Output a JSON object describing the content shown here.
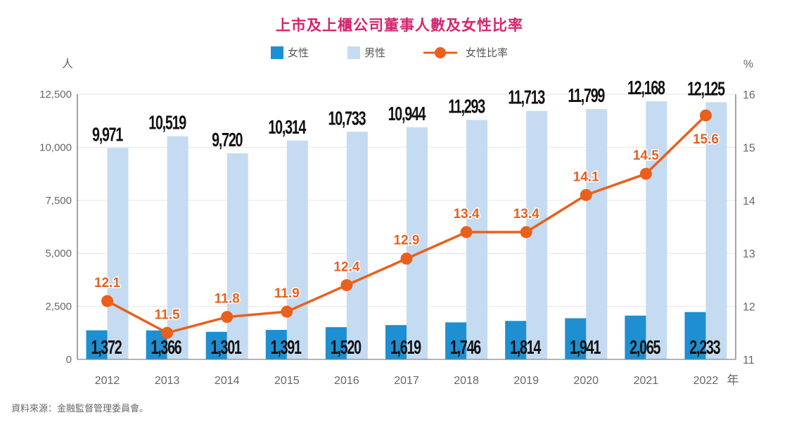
{
  "chart_data": {
    "type": "bar",
    "title": "上市及上櫃公司董事人數及女性比率",
    "categories": [
      "2012",
      "2013",
      "2014",
      "2015",
      "2016",
      "2017",
      "2018",
      "2019",
      "2020",
      "2021",
      "2022"
    ],
    "xlabel_suffix": "年",
    "ylabel_left": "人",
    "ylabel_right": "%",
    "ylim_left": [
      0,
      12500
    ],
    "ylim_right": [
      11,
      16
    ],
    "yticks_left": [
      "0",
      "2,500",
      "5,000",
      "7,500",
      "10,000",
      "12,500"
    ],
    "yticks_right": [
      "11",
      "12",
      "13",
      "14",
      "15",
      "16"
    ],
    "grid": true,
    "legend_position": "top-center",
    "series": [
      {
        "name": "女性",
        "type": "bar",
        "axis": "left",
        "color": "#1e8fd0",
        "values": [
          1372,
          1366,
          1301,
          1391,
          1520,
          1619,
          1746,
          1814,
          1941,
          2065,
          2233
        ],
        "labels": [
          "1,372",
          "1,366",
          "1,301",
          "1,391",
          "1,520",
          "1,619",
          "1,746",
          "1,814",
          "1,941",
          "2,065",
          "2,233"
        ]
      },
      {
        "name": "男性",
        "type": "bar",
        "axis": "right-of-female",
        "color": "#c5dbf1",
        "values": [
          9971,
          10519,
          9720,
          10314,
          10733,
          10944,
          11293,
          11713,
          11799,
          12168,
          12125
        ],
        "labels": [
          "9,971",
          "10,519",
          "9,720",
          "10,314",
          "10,733",
          "10,944",
          "11,293",
          "11,713",
          "11,799",
          "12,168",
          "12,125"
        ]
      },
      {
        "name": "女性比率",
        "type": "line",
        "axis": "right",
        "color": "#e8601c",
        "values": [
          12.1,
          11.5,
          11.8,
          11.9,
          12.4,
          12.9,
          13.4,
          13.4,
          14.1,
          14.5,
          15.6
        ],
        "labels": [
          "12.1",
          "11.5",
          "11.8",
          "11.9",
          "12.4",
          "12.9",
          "13.4",
          "13.4",
          "14.1",
          "14.5",
          "15.6"
        ]
      }
    ]
  },
  "legend": {
    "female": "女性",
    "male": "男性",
    "ratio": "女性比率"
  },
  "source": "資料來源：金融監督管理委員會。"
}
